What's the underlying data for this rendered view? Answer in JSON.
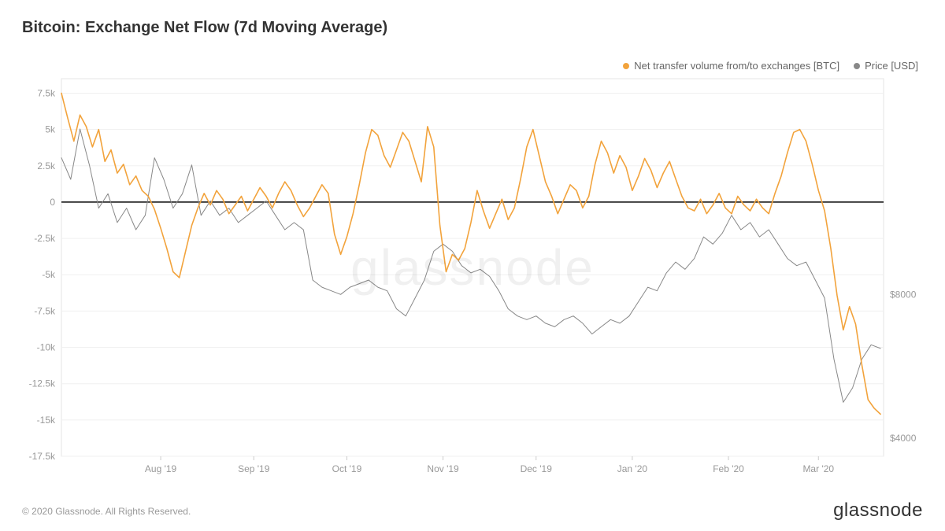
{
  "title": "Bitcoin: Exchange Net Flow (7d Moving Average)",
  "legend": {
    "series1": {
      "label": "Net transfer volume from/to exchanges [BTC]",
      "color": "#f2a33c"
    },
    "series2": {
      "label": "Price [USD]",
      "color": "#888888"
    }
  },
  "watermark": "glassnode",
  "copyright": "© 2020 Glassnode. All Rights Reserved.",
  "brand": "glassnode",
  "chart": {
    "type": "line",
    "background_color": "#ffffff",
    "plot_border_color": "#e5e5e5",
    "grid_color": "#f0f0f0",
    "zero_line_color": "#000000",
    "zero_line_width": 1.5,
    "line_width": 1.6,
    "price_line_width": 1.0,
    "x": {
      "ticks": [
        "Aug '19",
        "Sep '19",
        "Oct '19",
        "Nov '19",
        "Dec '19",
        "Jan '20",
        "Feb '20",
        "Mar '20"
      ],
      "tick_positions": [
        32,
        62,
        92,
        123,
        153,
        184,
        215,
        244
      ],
      "domain": [
        0,
        265
      ]
    },
    "y_left": {
      "label_color": "#f2a33c",
      "ticks": [
        7500,
        5000,
        2500,
        0,
        -2500,
        -5000,
        -7500,
        -10000,
        -12500,
        -15000,
        -17500
      ],
      "tick_labels": [
        "7.5k",
        "5k",
        "2.5k",
        "0",
        "-2.5k",
        "-5k",
        "-7.5k",
        "-10k",
        "-12.5k",
        "-15k",
        "-17.5k"
      ],
      "domain": [
        -17500,
        8500
      ]
    },
    "y_right": {
      "label_color": "#999999",
      "ticks": [
        8000,
        4000
      ],
      "tick_labels": [
        "$8000",
        "$4000"
      ],
      "domain": [
        3500,
        14000
      ]
    },
    "series_netflow": {
      "color": "#f2a33c",
      "data": [
        [
          0,
          7500
        ],
        [
          2,
          5800
        ],
        [
          4,
          4200
        ],
        [
          6,
          6000
        ],
        [
          8,
          5200
        ],
        [
          10,
          3800
        ],
        [
          12,
          5000
        ],
        [
          14,
          2800
        ],
        [
          16,
          3600
        ],
        [
          18,
          2000
        ],
        [
          20,
          2600
        ],
        [
          22,
          1200
        ],
        [
          24,
          1800
        ],
        [
          26,
          800
        ],
        [
          28,
          400
        ],
        [
          30,
          -500
        ],
        [
          32,
          -1800
        ],
        [
          34,
          -3200
        ],
        [
          36,
          -4800
        ],
        [
          38,
          -5200
        ],
        [
          40,
          -3400
        ],
        [
          42,
          -1600
        ],
        [
          44,
          -400
        ],
        [
          46,
          600
        ],
        [
          48,
          -200
        ],
        [
          50,
          800
        ],
        [
          52,
          200
        ],
        [
          54,
          -800
        ],
        [
          56,
          -200
        ],
        [
          58,
          400
        ],
        [
          60,
          -600
        ],
        [
          62,
          200
        ],
        [
          64,
          1000
        ],
        [
          66,
          400
        ],
        [
          68,
          -400
        ],
        [
          70,
          600
        ],
        [
          72,
          1400
        ],
        [
          74,
          800
        ],
        [
          76,
          -200
        ],
        [
          78,
          -1000
        ],
        [
          80,
          -400
        ],
        [
          82,
          400
        ],
        [
          84,
          1200
        ],
        [
          86,
          600
        ],
        [
          88,
          -2200
        ],
        [
          90,
          -3600
        ],
        [
          92,
          -2400
        ],
        [
          94,
          -800
        ],
        [
          96,
          1200
        ],
        [
          98,
          3400
        ],
        [
          100,
          5000
        ],
        [
          102,
          4600
        ],
        [
          104,
          3200
        ],
        [
          106,
          2400
        ],
        [
          108,
          3600
        ],
        [
          110,
          4800
        ],
        [
          112,
          4200
        ],
        [
          114,
          2800
        ],
        [
          116,
          1400
        ],
        [
          118,
          5200
        ],
        [
          120,
          3800
        ],
        [
          122,
          -1600
        ],
        [
          124,
          -4800
        ],
        [
          126,
          -3600
        ],
        [
          128,
          -4000
        ],
        [
          130,
          -3200
        ],
        [
          132,
          -1400
        ],
        [
          134,
          800
        ],
        [
          136,
          -600
        ],
        [
          138,
          -1800
        ],
        [
          140,
          -800
        ],
        [
          142,
          200
        ],
        [
          144,
          -1200
        ],
        [
          146,
          -400
        ],
        [
          148,
          1600
        ],
        [
          150,
          3800
        ],
        [
          152,
          5000
        ],
        [
          154,
          3200
        ],
        [
          156,
          1400
        ],
        [
          158,
          400
        ],
        [
          160,
          -800
        ],
        [
          162,
          200
        ],
        [
          164,
          1200
        ],
        [
          166,
          800
        ],
        [
          168,
          -400
        ],
        [
          170,
          400
        ],
        [
          172,
          2600
        ],
        [
          174,
          4200
        ],
        [
          176,
          3400
        ],
        [
          178,
          2000
        ],
        [
          180,
          3200
        ],
        [
          182,
          2400
        ],
        [
          184,
          800
        ],
        [
          186,
          1800
        ],
        [
          188,
          3000
        ],
        [
          190,
          2200
        ],
        [
          192,
          1000
        ],
        [
          194,
          2000
        ],
        [
          196,
          2800
        ],
        [
          198,
          1600
        ],
        [
          200,
          400
        ],
        [
          202,
          -400
        ],
        [
          204,
          -600
        ],
        [
          206,
          200
        ],
        [
          208,
          -800
        ],
        [
          210,
          -200
        ],
        [
          212,
          600
        ],
        [
          214,
          -400
        ],
        [
          216,
          -800
        ],
        [
          218,
          400
        ],
        [
          220,
          -200
        ],
        [
          222,
          -600
        ],
        [
          224,
          200
        ],
        [
          226,
          -400
        ],
        [
          228,
          -800
        ],
        [
          230,
          600
        ],
        [
          232,
          1800
        ],
        [
          234,
          3400
        ],
        [
          236,
          4800
        ],
        [
          238,
          5000
        ],
        [
          240,
          4200
        ],
        [
          242,
          2600
        ],
        [
          244,
          800
        ],
        [
          246,
          -600
        ],
        [
          248,
          -3200
        ],
        [
          250,
          -6400
        ],
        [
          252,
          -8800
        ],
        [
          254,
          -7200
        ],
        [
          256,
          -8400
        ],
        [
          258,
          -11200
        ],
        [
          260,
          -13600
        ],
        [
          262,
          -14200
        ],
        [
          264,
          -14600
        ]
      ]
    },
    "series_price": {
      "color": "#888888",
      "data": [
        [
          0,
          11800
        ],
        [
          3,
          11200
        ],
        [
          6,
          12600
        ],
        [
          9,
          11600
        ],
        [
          12,
          10400
        ],
        [
          15,
          10800
        ],
        [
          18,
          10000
        ],
        [
          21,
          10400
        ],
        [
          24,
          9800
        ],
        [
          27,
          10200
        ],
        [
          30,
          11800
        ],
        [
          33,
          11200
        ],
        [
          36,
          10400
        ],
        [
          39,
          10800
        ],
        [
          42,
          11600
        ],
        [
          45,
          10200
        ],
        [
          48,
          10600
        ],
        [
          51,
          10200
        ],
        [
          54,
          10400
        ],
        [
          57,
          10000
        ],
        [
          60,
          10200
        ],
        [
          63,
          10400
        ],
        [
          66,
          10600
        ],
        [
          69,
          10200
        ],
        [
          72,
          9800
        ],
        [
          75,
          10000
        ],
        [
          78,
          9800
        ],
        [
          81,
          8400
        ],
        [
          84,
          8200
        ],
        [
          87,
          8100
        ],
        [
          90,
          8000
        ],
        [
          93,
          8200
        ],
        [
          96,
          8300
        ],
        [
          99,
          8400
        ],
        [
          102,
          8200
        ],
        [
          105,
          8100
        ],
        [
          108,
          7600
        ],
        [
          111,
          7400
        ],
        [
          114,
          7900
        ],
        [
          117,
          8400
        ],
        [
          120,
          9200
        ],
        [
          123,
          9400
        ],
        [
          126,
          9200
        ],
        [
          129,
          8800
        ],
        [
          132,
          8600
        ],
        [
          135,
          8700
        ],
        [
          138,
          8500
        ],
        [
          141,
          8100
        ],
        [
          144,
          7600
        ],
        [
          147,
          7400
        ],
        [
          150,
          7300
        ],
        [
          153,
          7400
        ],
        [
          156,
          7200
        ],
        [
          159,
          7100
        ],
        [
          162,
          7300
        ],
        [
          165,
          7400
        ],
        [
          168,
          7200
        ],
        [
          171,
          6900
        ],
        [
          174,
          7100
        ],
        [
          177,
          7300
        ],
        [
          180,
          7200
        ],
        [
          183,
          7400
        ],
        [
          186,
          7800
        ],
        [
          189,
          8200
        ],
        [
          192,
          8100
        ],
        [
          195,
          8600
        ],
        [
          198,
          8900
        ],
        [
          201,
          8700
        ],
        [
          204,
          9000
        ],
        [
          207,
          9600
        ],
        [
          210,
          9400
        ],
        [
          213,
          9700
        ],
        [
          216,
          10200
        ],
        [
          219,
          9800
        ],
        [
          222,
          10000
        ],
        [
          225,
          9600
        ],
        [
          228,
          9800
        ],
        [
          231,
          9400
        ],
        [
          234,
          9000
        ],
        [
          237,
          8800
        ],
        [
          240,
          8900
        ],
        [
          243,
          8400
        ],
        [
          246,
          7900
        ],
        [
          249,
          6200
        ],
        [
          252,
          5000
        ],
        [
          255,
          5400
        ],
        [
          258,
          6200
        ],
        [
          261,
          6600
        ],
        [
          264,
          6500
        ]
      ]
    }
  }
}
